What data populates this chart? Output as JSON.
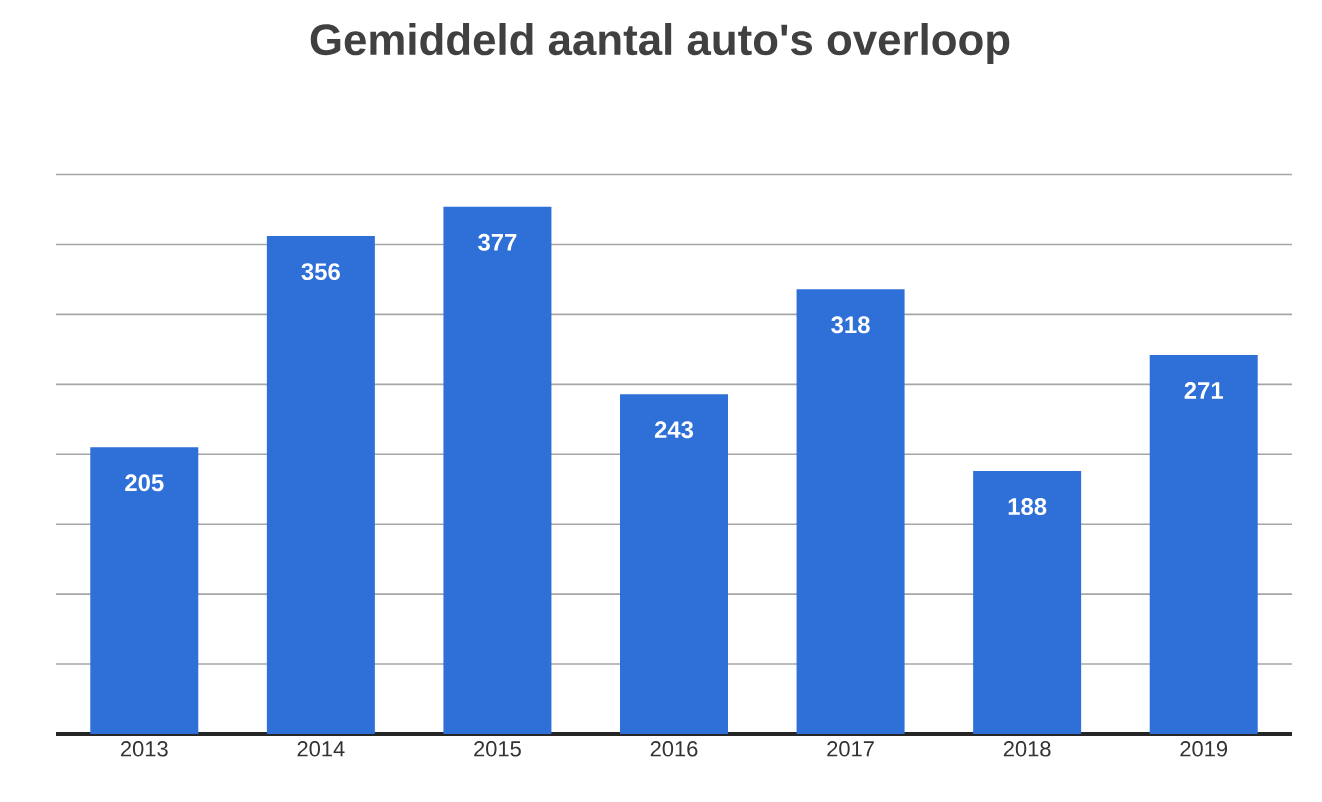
{
  "chart_data": {
    "type": "bar",
    "title": "Gemiddeld aantal auto's overloop",
    "categories": [
      "2013",
      "2014",
      "2015",
      "2016",
      "2017",
      "2018",
      "2019"
    ],
    "values": [
      205,
      356,
      377,
      243,
      318,
      188,
      271
    ],
    "color": "#2e6fd8",
    "grid": "y",
    "tick_labels": "x",
    "data_labels": true
  }
}
